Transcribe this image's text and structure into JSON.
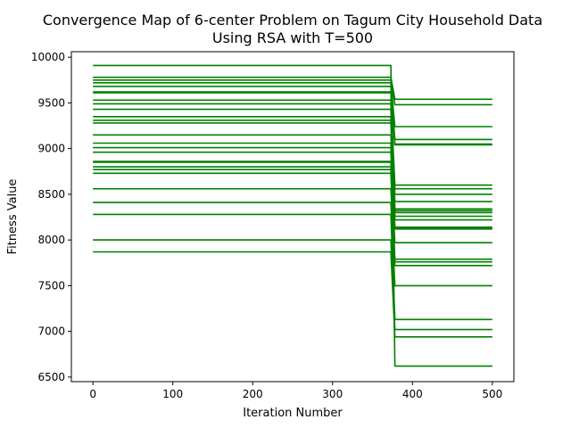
{
  "chart_data": {
    "type": "line",
    "title_line1": "Convergence Map of 6-center Problem on Tagum City Household Data",
    "title_line2": "Using RSA with T=500",
    "xlabel": "Iteration Number",
    "ylabel": "Fitness Value",
    "xlim": [
      -27,
      527
    ],
    "ylim": [
      6450,
      10060
    ],
    "xticks": [
      0,
      100,
      200,
      300,
      400,
      500
    ],
    "yticks": [
      6500,
      7000,
      7500,
      8000,
      8500,
      9000,
      9500,
      10000
    ],
    "x_tick_labels": [
      "0",
      "100",
      "200",
      "300",
      "400",
      "500"
    ],
    "y_tick_labels": [
      "6500",
      "7000",
      "7500",
      "8000",
      "8500",
      "9000",
      "9500",
      "10000"
    ],
    "grid": false,
    "legend": "none",
    "line_color": "#008000",
    "x_end": 500,
    "drop_start": 373,
    "drop_end": 378,
    "series": [
      {
        "initial": 9910,
        "final": 6620
      },
      {
        "initial": 9780,
        "final": 9540
      },
      {
        "initial": 9750,
        "final": 9480
      },
      {
        "initial": 9720,
        "final": 9240
      },
      {
        "initial": 9680,
        "final": 9100
      },
      {
        "initial": 9620,
        "final": 9050
      },
      {
        "initial": 9610,
        "final": 9040
      },
      {
        "initial": 9530,
        "final": 8600
      },
      {
        "initial": 9490,
        "final": 8560
      },
      {
        "initial": 9430,
        "final": 8500
      },
      {
        "initial": 9350,
        "final": 8420
      },
      {
        "initial": 9310,
        "final": 8340
      },
      {
        "initial": 9280,
        "final": 8320
      },
      {
        "initial": 9150,
        "final": 8300
      },
      {
        "initial": 9060,
        "final": 8260
      },
      {
        "initial": 9010,
        "final": 8220
      },
      {
        "initial": 8960,
        "final": 8140
      },
      {
        "initial": 8860,
        "final": 8130
      },
      {
        "initial": 8850,
        "final": 8120
      },
      {
        "initial": 8800,
        "final": 7970
      },
      {
        "initial": 8770,
        "final": 7790
      },
      {
        "initial": 8730,
        "final": 7760
      },
      {
        "initial": 8560,
        "final": 7720
      },
      {
        "initial": 8410,
        "final": 7500
      },
      {
        "initial": 8280,
        "final": 7130
      },
      {
        "initial": 8000,
        "final": 7020
      },
      {
        "initial": 7870,
        "final": 6940
      }
    ]
  }
}
